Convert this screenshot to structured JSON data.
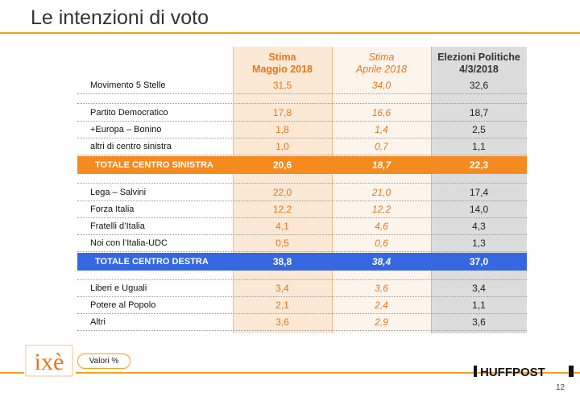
{
  "title": "Le intenzioni di voto",
  "headers": {
    "col1": [
      "Stima",
      "Maggio 2018"
    ],
    "col2": [
      "Stima",
      "Aprile 2018"
    ],
    "col3": [
      "Elezioni Politiche",
      "4/3/2018"
    ]
  },
  "rows": [
    {
      "label": "Movimento 5 Stelle",
      "v1": "31,5",
      "v2": "34,0",
      "v3": "32,6"
    },
    {
      "label": "Partito Democratico",
      "v1": "17,8",
      "v2": "16,6",
      "v3": "18,7"
    },
    {
      "label": "+Europa – Bonino",
      "v1": "1,8",
      "v2": "1,4",
      "v3": "2,5"
    },
    {
      "label": "altri di centro sinistra",
      "v1": "1,0",
      "v2": "0,7",
      "v3": "1,1"
    },
    {
      "label": "TOTALE CENTRO SINISTRA",
      "v1": "20,6",
      "v2": "18,7",
      "v3": "22,3",
      "total": "orange"
    },
    {
      "label": "Lega – Salvini",
      "v1": "22,0",
      "v2": "21,0",
      "v3": "17,4"
    },
    {
      "label": "Forza Italia",
      "v1": "12,2",
      "v2": "12,2",
      "v3": "14,0"
    },
    {
      "label": "Fratelli d’Italia",
      "v1": "4,1",
      "v2": "4,6",
      "v3": "4,3"
    },
    {
      "label": "Noi con l’Italia-UDC",
      "v1": "0,5",
      "v2": "0,6",
      "v3": "1,3"
    },
    {
      "label": "TOTALE CENTRO DESTRA",
      "v1": "38,8",
      "v2": "38,4",
      "v3": "37,0",
      "total": "blue"
    },
    {
      "label": "Liberi e Uguali",
      "v1": "3,4",
      "v2": "3,6",
      "v3": "3,4"
    },
    {
      "label": "Potere al Popolo",
      "v1": "2,1",
      "v2": "2,4",
      "v3": "1,1"
    },
    {
      "label": "Altri",
      "v1": "3,6",
      "v2": "2,9",
      "v3": "3,6"
    }
  ],
  "footer": {
    "logo_text": "ixè",
    "units_label": "Valori %",
    "brand": "HUFFPOST",
    "page_number": "12"
  },
  "colors": {
    "accent": "#f0a020",
    "orange_total": "#f58a1f",
    "blue_total": "#3567e0",
    "estimate_text": "#e8751a"
  }
}
